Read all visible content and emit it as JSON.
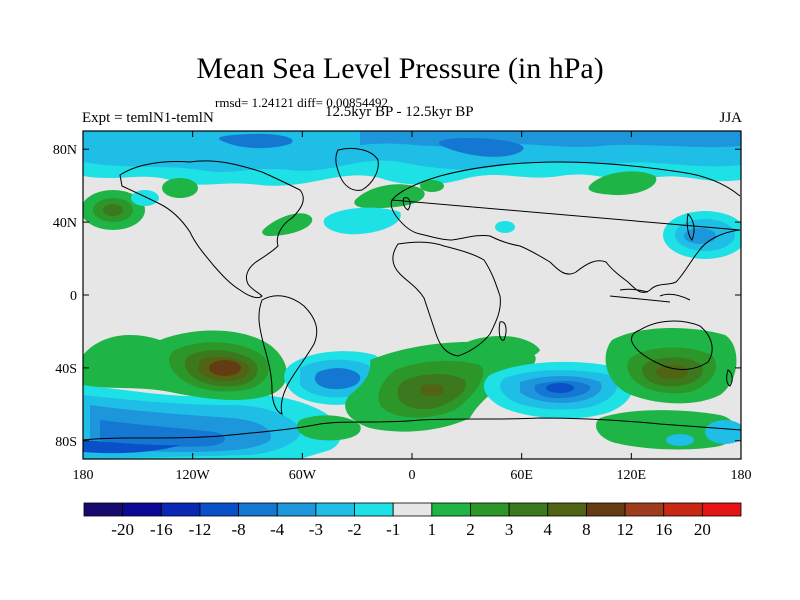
{
  "chart_data": {
    "type": "heatmap",
    "title": "Mean Sea Level Pressure (in hPa)",
    "stats_text": "rmsd= 1.24121 diff= 0.00854492",
    "left_label": "Expt = temlN1-temlN",
    "center_label": "12.5kyr BP - 12.5kyr BP",
    "right_label": "JJA",
    "xlim": [
      -180,
      180
    ],
    "ylim": [
      -90,
      90
    ],
    "x_ticks": [
      {
        "value": -180,
        "label": "180"
      },
      {
        "value": -120,
        "label": "120W"
      },
      {
        "value": -60,
        "label": "60W"
      },
      {
        "value": 0,
        "label": "0"
      },
      {
        "value": 60,
        "label": "60E"
      },
      {
        "value": 120,
        "label": "120E"
      },
      {
        "value": 180,
        "label": "180"
      }
    ],
    "y_ticks": [
      {
        "value": 80,
        "label": "80N"
      },
      {
        "value": 40,
        "label": "40N"
      },
      {
        "value": 0,
        "label": "0"
      },
      {
        "value": -40,
        "label": "40S"
      },
      {
        "value": -80,
        "label": "80S"
      }
    ],
    "colorbar": {
      "colors": [
        "#160a6e",
        "#0a0a96",
        "#0a28b4",
        "#0a50c8",
        "#1478d2",
        "#1e96dc",
        "#1ebee6",
        "#1ee1e6",
        "#e6e6e6",
        "#1eb446",
        "#2d9628",
        "#3c781e",
        "#506414",
        "#643c14",
        "#a03c1e",
        "#c82814",
        "#e61414"
      ],
      "labels": [
        "-20",
        "-16",
        "-12",
        "-8",
        "-4",
        "-3",
        "-2",
        "-1",
        "1",
        "2",
        "3",
        "4",
        "8",
        "12",
        "16",
        "20"
      ]
    },
    "anomaly_regions": [
      {
        "name": "North Pacific negative band",
        "lon": -150,
        "lat": 78,
        "value": -1
      },
      {
        "name": "Central Arctic negative",
        "lon": 30,
        "lat": 80,
        "value": -3
      },
      {
        "name": "Northeast Pacific positive",
        "lon": -165,
        "lat": 45,
        "value": 3
      },
      {
        "name": "North Atlantic positive",
        "lon": -25,
        "lat": 52,
        "value": 2
      },
      {
        "name": "Western North Atlantic negative",
        "lon": -40,
        "lat": 37,
        "value": -1
      },
      {
        "name": "Western North Pacific negative",
        "lon": 145,
        "lat": 30,
        "value": -3
      },
      {
        "name": "South Pacific positive",
        "lon": -105,
        "lat": -35,
        "value": 8
      },
      {
        "name": "South Atlantic positive",
        "lon": 5,
        "lat": -50,
        "value": 4
      },
      {
        "name": "South Atlantic negative",
        "lon": -35,
        "lat": -40,
        "value": -4
      },
      {
        "name": "South Indian negative",
        "lon": 75,
        "lat": -45,
        "value": -4
      },
      {
        "name": "Australia positive",
        "lon": 140,
        "lat": -38,
        "value": 4
      },
      {
        "name": "Southern Ocean negative",
        "lon": -150,
        "lat": -60,
        "value": -4
      }
    ]
  }
}
